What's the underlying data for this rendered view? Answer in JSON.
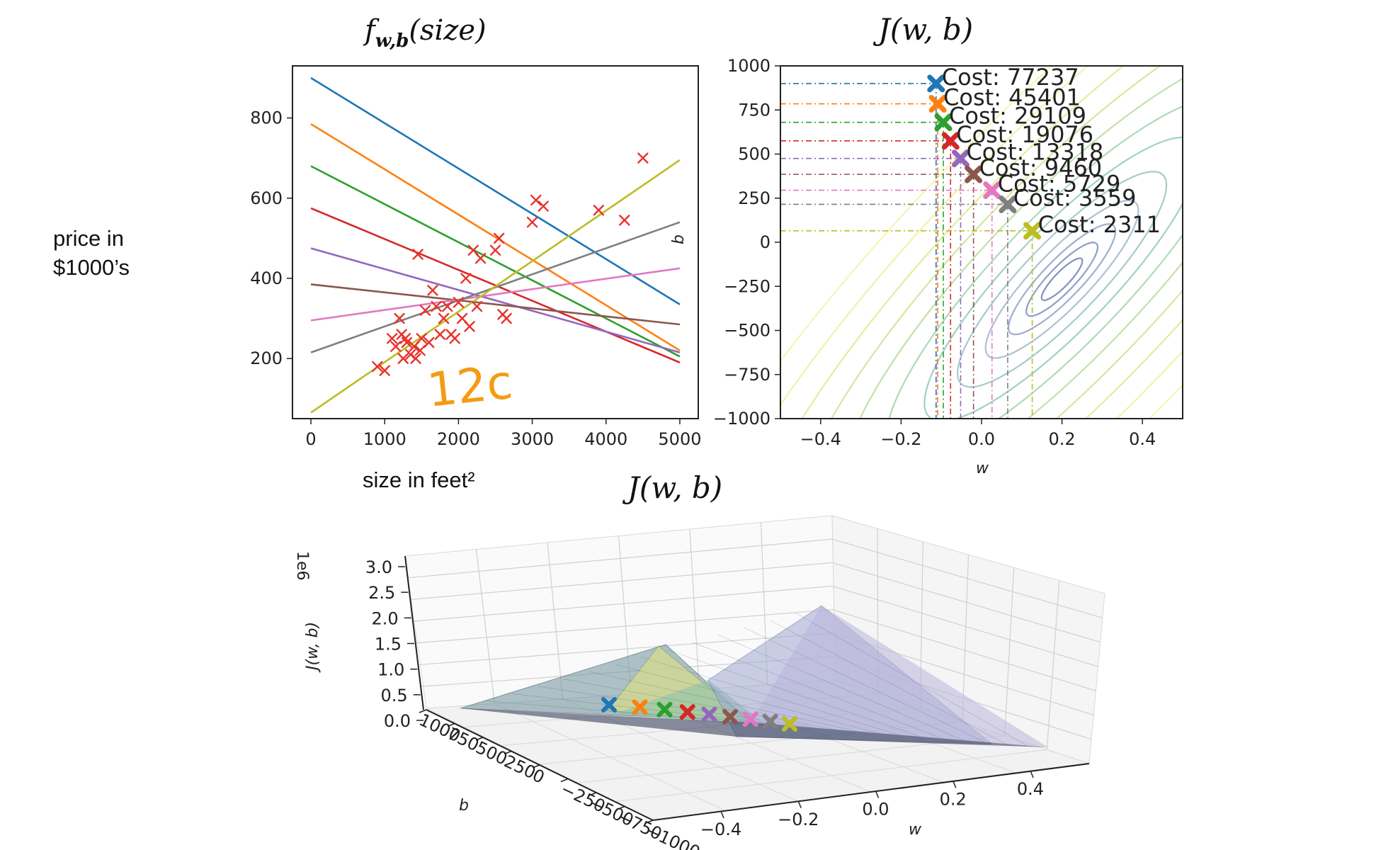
{
  "chart_data": [
    {
      "type": "line",
      "panel": "model",
      "title_main": "f",
      "title_sub": "w,b",
      "title_arg": "(size)",
      "xlabel": "size in feet²",
      "ylabel_line1": "price in",
      "ylabel_line2": "$1000’s",
      "xlim": [
        -250,
        5250
      ],
      "ylim": [
        50,
        930
      ],
      "xticks": [
        0,
        1000,
        2000,
        3000,
        4000,
        5000
      ],
      "yticks": [
        200,
        400,
        600,
        800
      ],
      "annotation": "12c",
      "annotation_color": "#f39c12",
      "series": [
        {
          "color": "#1f77b4",
          "y0": 900,
          "y1": 335
        },
        {
          "color": "#ff7f0e",
          "y0": 785,
          "y1": 220
        },
        {
          "color": "#2ca02c",
          "y0": 680,
          "y1": 205
        },
        {
          "color": "#d62728",
          "y0": 575,
          "y1": 190
        },
        {
          "color": "#9467bd",
          "y0": 475,
          "y1": 215
        },
        {
          "color": "#8c564b",
          "y0": 385,
          "y1": 285
        },
        {
          "color": "#e377c2",
          "y0": 295,
          "y1": 425
        },
        {
          "color": "#7f7f7f",
          "y0": 215,
          "y1": 540
        },
        {
          "color": "#bcbd22",
          "y0": 65,
          "y1": 695
        }
      ],
      "points_color": "#e8322a",
      "points": [
        [
          900,
          180
        ],
        [
          1000,
          170
        ],
        [
          1100,
          250
        ],
        [
          1150,
          230
        ],
        [
          1200,
          300
        ],
        [
          1230,
          260
        ],
        [
          1250,
          200
        ],
        [
          1280,
          250
        ],
        [
          1300,
          240
        ],
        [
          1350,
          210
        ],
        [
          1400,
          230
        ],
        [
          1420,
          200
        ],
        [
          1450,
          460
        ],
        [
          1480,
          220
        ],
        [
          1500,
          250
        ],
        [
          1550,
          320
        ],
        [
          1600,
          240
        ],
        [
          1650,
          370
        ],
        [
          1700,
          330
        ],
        [
          1750,
          260
        ],
        [
          1800,
          300
        ],
        [
          1850,
          330
        ],
        [
          1900,
          260
        ],
        [
          1950,
          250
        ],
        [
          2000,
          340
        ],
        [
          2050,
          300
        ],
        [
          2100,
          400
        ],
        [
          2150,
          280
        ],
        [
          2200,
          470
        ],
        [
          2250,
          330
        ],
        [
          2300,
          450
        ],
        [
          2500,
          470
        ],
        [
          2550,
          500
        ],
        [
          2600,
          310
        ],
        [
          2650,
          300
        ],
        [
          3000,
          540
        ],
        [
          3050,
          595
        ],
        [
          3150,
          580
        ],
        [
          3900,
          570
        ],
        [
          4250,
          545
        ],
        [
          4500,
          700
        ]
      ]
    },
    {
      "type": "contour",
      "panel": "cost-contour",
      "title": "J(w, b)",
      "xlabel": "w",
      "ylabel": "b",
      "xlim": [
        -0.5,
        0.5
      ],
      "ylim": [
        -1000,
        1000
      ],
      "xticks": [
        -0.4,
        -0.2,
        0.0,
        0.2,
        0.4
      ],
      "yticks": [
        -1000,
        -750,
        -500,
        -250,
        0,
        250,
        500,
        750,
        1000
      ],
      "points": [
        {
          "w": -0.113,
          "b": 900,
          "label": "Cost: 77237",
          "color": "#1f77b4"
        },
        {
          "w": -0.109,
          "b": 785,
          "label": "Cost: 45401",
          "color": "#ff7f0e"
        },
        {
          "w": -0.095,
          "b": 680,
          "label": "Cost: 29109",
          "color": "#2ca02c"
        },
        {
          "w": -0.077,
          "b": 575,
          "label": "Cost: 19076",
          "color": "#d62728"
        },
        {
          "w": -0.052,
          "b": 475,
          "label": "Cost: 13318",
          "color": "#9467bd"
        },
        {
          "w": -0.02,
          "b": 385,
          "label": "Cost: 9460",
          "color": "#8c564b"
        },
        {
          "w": 0.026,
          "b": 295,
          "label": "Cost: 5729",
          "color": "#e377c2"
        },
        {
          "w": 0.065,
          "b": 215,
          "label": "Cost: 3559",
          "color": "#7f7f7f"
        },
        {
          "w": 0.126,
          "b": 65,
          "label": "Cost: 2311",
          "color": "#bcbd22"
        }
      ]
    },
    {
      "type": "surface",
      "panel": "cost-surface",
      "title": "J(w, b)",
      "xlabel": "w",
      "ylabel": "b",
      "zlabel": "J(w, b)",
      "z_offset_label": "1e6",
      "zticks": [
        "0.0",
        "0.5",
        "1.0",
        "1.5",
        "2.0",
        "2.5",
        "3.0"
      ],
      "wticks": [
        "−0.4",
        "−0.2",
        "0.0",
        "0.2",
        "0.4"
      ],
      "bticks": [
        "1000",
        "750",
        "500",
        "250",
        "0",
        "−250",
        "−500",
        "−750",
        "−1000"
      ]
    }
  ]
}
